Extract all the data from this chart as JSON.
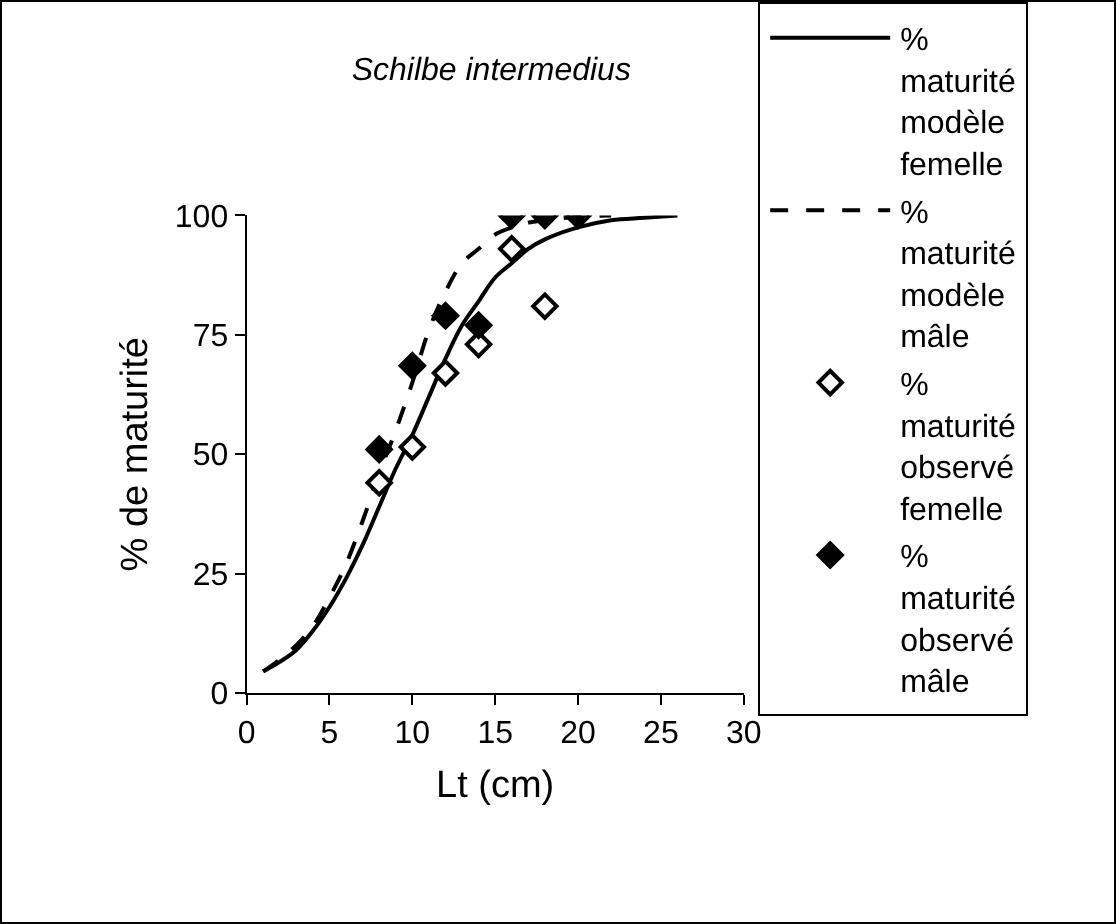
{
  "chart_data": {
    "type": "line",
    "title": "Schilbe intermedius",
    "xlabel": "Lt (cm)",
    "ylabel": "% de maturité",
    "xlim": [
      0,
      30
    ],
    "xticks": [
      0,
      5,
      10,
      15,
      20,
      25,
      30
    ],
    "ylim": [
      0,
      100
    ],
    "yticks": [
      0,
      25,
      50,
      75,
      100
    ],
    "grid": false,
    "legend": "right",
    "series": [
      {
        "name": "% maturité modèle femelle",
        "line_style": "solid",
        "marker": "none",
        "color": "#000000",
        "x": [
          1,
          2,
          3,
          4,
          5,
          6,
          7,
          8,
          9,
          10,
          11,
          12,
          13,
          14,
          15,
          16,
          17,
          18,
          20,
          22,
          24,
          26
        ],
        "values": [
          4.5,
          6.5,
          9,
          13,
          18,
          24,
          31,
          39,
          47,
          54,
          62,
          70,
          77,
          82,
          87,
          90,
          93,
          95,
          97.5,
          99,
          99.5,
          100
        ]
      },
      {
        "name": "% maturité modèle mâle",
        "line_style": "dashed",
        "marker": "none",
        "color": "#000000",
        "x": [
          1,
          2,
          3,
          4,
          5,
          6,
          7,
          8,
          9,
          10,
          11,
          12,
          13,
          14,
          15,
          16,
          17,
          18,
          20,
          22
        ],
        "values": [
          4.5,
          7,
          10,
          14,
          20,
          27,
          36,
          46,
          55,
          65,
          76,
          84,
          90,
          93,
          96,
          97.5,
          98.5,
          99,
          99.7,
          100
        ]
      },
      {
        "name": "% maturité observé femelle",
        "type": "scatter",
        "marker": "diamond",
        "color": "#ffffff",
        "x": [
          8,
          10,
          12,
          14,
          16,
          18
        ],
        "values": [
          44,
          51.5,
          67,
          73,
          93,
          81
        ]
      },
      {
        "name": "% maturité observé mâle",
        "type": "scatter",
        "marker": "diamond",
        "color": "#000000",
        "x": [
          8,
          10,
          12,
          14,
          16,
          18,
          20
        ],
        "values": [
          51,
          68.5,
          79,
          77,
          100,
          100,
          100
        ]
      }
    ]
  }
}
